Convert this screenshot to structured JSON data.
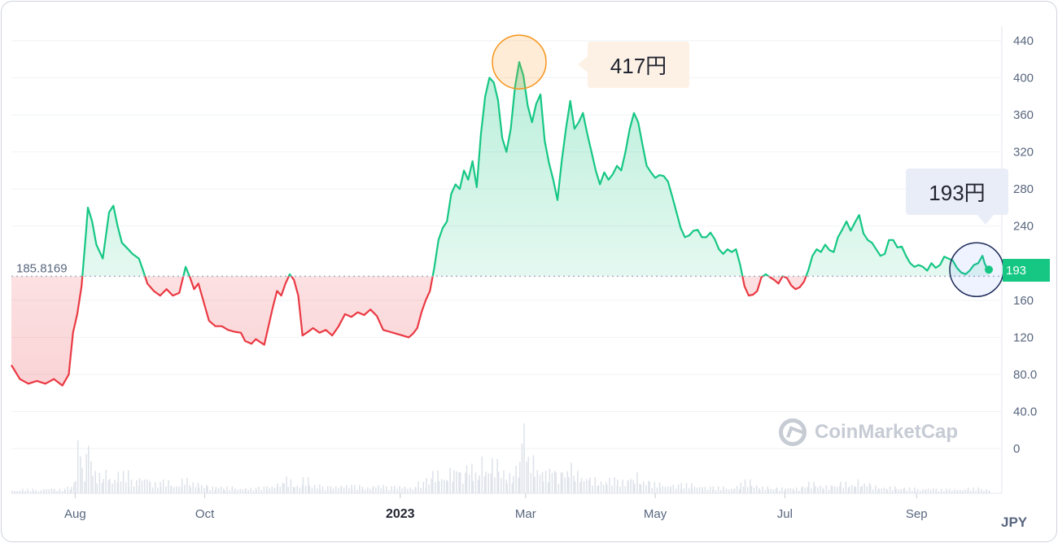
{
  "chart_data": {
    "type": "area",
    "currency": "JPY",
    "reference": {
      "label": "185.8169",
      "value": 185.8169
    },
    "y_ticks": [
      "440",
      "400",
      "360",
      "320",
      "280",
      "240",
      "160",
      "120",
      "80.0",
      "40.0",
      "0"
    ],
    "y_tick_values": [
      440,
      400,
      360,
      320,
      280,
      240,
      160,
      120,
      80,
      40,
      0
    ],
    "ylim": [
      0,
      440
    ],
    "x_ticks": [
      {
        "label": "Aug",
        "day": 30,
        "bold": false
      },
      {
        "label": "Oct",
        "day": 91,
        "bold": false
      },
      {
        "label": "2023",
        "day": 183,
        "bold": true
      },
      {
        "label": "Mar",
        "day": 242,
        "bold": false
      },
      {
        "label": "May",
        "day": 303,
        "bold": false
      },
      {
        "label": "Jul",
        "day": 364,
        "bold": false
      },
      {
        "label": "Sep",
        "day": 426,
        "bold": false
      }
    ],
    "high": {
      "label": "417円",
      "value": 417,
      "day": 239
    },
    "last": {
      "label": "193",
      "callout": "193円",
      "value": 193,
      "day": 460
    },
    "price_series": [
      [
        0,
        90
      ],
      [
        4,
        75
      ],
      [
        8,
        70
      ],
      [
        12,
        73
      ],
      [
        16,
        70
      ],
      [
        20,
        75
      ],
      [
        24,
        68
      ],
      [
        27,
        80
      ],
      [
        29,
        125
      ],
      [
        31,
        145
      ],
      [
        33,
        175
      ],
      [
        35,
        230
      ],
      [
        36,
        260
      ],
      [
        38,
        245
      ],
      [
        40,
        220
      ],
      [
        43,
        205
      ],
      [
        46,
        255
      ],
      [
        48,
        262
      ],
      [
        50,
        240
      ],
      [
        52,
        222
      ],
      [
        55,
        215
      ],
      [
        57,
        210
      ],
      [
        60,
        205
      ],
      [
        62,
        192
      ],
      [
        64,
        178
      ],
      [
        67,
        170
      ],
      [
        70,
        165
      ],
      [
        73,
        172
      ],
      [
        76,
        165
      ],
      [
        79,
        168
      ],
      [
        82,
        196
      ],
      [
        84,
        185
      ],
      [
        86,
        172
      ],
      [
        88,
        178
      ],
      [
        90,
        162
      ],
      [
        93,
        138
      ],
      [
        96,
        132
      ],
      [
        99,
        132
      ],
      [
        102,
        128
      ],
      [
        105,
        126
      ],
      [
        108,
        125
      ],
      [
        110,
        116
      ],
      [
        113,
        113
      ],
      [
        115,
        118
      ],
      [
        117,
        115
      ],
      [
        119,
        112
      ],
      [
        121,
        132
      ],
      [
        123,
        152
      ],
      [
        125,
        170
      ],
      [
        127,
        165
      ],
      [
        129,
        178
      ],
      [
        131,
        188
      ],
      [
        133,
        182
      ],
      [
        135,
        165
      ],
      [
        137,
        122
      ],
      [
        139,
        125
      ],
      [
        142,
        130
      ],
      [
        145,
        125
      ],
      [
        148,
        128
      ],
      [
        151,
        122
      ],
      [
        154,
        132
      ],
      [
        157,
        145
      ],
      [
        160,
        142
      ],
      [
        163,
        147
      ],
      [
        166,
        144
      ],
      [
        169,
        150
      ],
      [
        172,
        143
      ],
      [
        175,
        128
      ],
      [
        178,
        126
      ],
      [
        181,
        124
      ],
      [
        184,
        122
      ],
      [
        187,
        120
      ],
      [
        189,
        124
      ],
      [
        191,
        130
      ],
      [
        193,
        147
      ],
      [
        195,
        160
      ],
      [
        197,
        170
      ],
      [
        199,
        195
      ],
      [
        201,
        225
      ],
      [
        203,
        238
      ],
      [
        205,
        245
      ],
      [
        207,
        275
      ],
      [
        209,
        285
      ],
      [
        211,
        280
      ],
      [
        213,
        300
      ],
      [
        215,
        290
      ],
      [
        217,
        310
      ],
      [
        219,
        282
      ],
      [
        221,
        340
      ],
      [
        223,
        380
      ],
      [
        225,
        400
      ],
      [
        227,
        395
      ],
      [
        229,
        376
      ],
      [
        231,
        335
      ],
      [
        233,
        320
      ],
      [
        235,
        345
      ],
      [
        237,
        390
      ],
      [
        239,
        417
      ],
      [
        241,
        402
      ],
      [
        243,
        370
      ],
      [
        245,
        352
      ],
      [
        247,
        372
      ],
      [
        249,
        382
      ],
      [
        251,
        332
      ],
      [
        253,
        308
      ],
      [
        255,
        290
      ],
      [
        257,
        268
      ],
      [
        259,
        310
      ],
      [
        261,
        345
      ],
      [
        263,
        375
      ],
      [
        265,
        345
      ],
      [
        267,
        352
      ],
      [
        269,
        362
      ],
      [
        271,
        340
      ],
      [
        273,
        320
      ],
      [
        275,
        300
      ],
      [
        277,
        285
      ],
      [
        279,
        298
      ],
      [
        281,
        290
      ],
      [
        283,
        296
      ],
      [
        285,
        305
      ],
      [
        287,
        300
      ],
      [
        289,
        320
      ],
      [
        291,
        345
      ],
      [
        293,
        362
      ],
      [
        295,
        352
      ],
      [
        297,
        328
      ],
      [
        299,
        305
      ],
      [
        301,
        298
      ],
      [
        303,
        292
      ],
      [
        305,
        295
      ],
      [
        307,
        294
      ],
      [
        309,
        288
      ],
      [
        311,
        272
      ],
      [
        313,
        255
      ],
      [
        315,
        238
      ],
      [
        317,
        228
      ],
      [
        319,
        230
      ],
      [
        321,
        235
      ],
      [
        323,
        236
      ],
      [
        325,
        228
      ],
      [
        327,
        228
      ],
      [
        329,
        233
      ],
      [
        331,
        226
      ],
      [
        333,
        215
      ],
      [
        335,
        210
      ],
      [
        337,
        215
      ],
      [
        339,
        212
      ],
      [
        341,
        215
      ],
      [
        343,
        198
      ],
      [
        345,
        175
      ],
      [
        347,
        165
      ],
      [
        349,
        166
      ],
      [
        351,
        170
      ],
      [
        353,
        185
      ],
      [
        355,
        188
      ],
      [
        357,
        185
      ],
      [
        359,
        182
      ],
      [
        361,
        178
      ],
      [
        363,
        186
      ],
      [
        365,
        184
      ],
      [
        367,
        176
      ],
      [
        369,
        172
      ],
      [
        371,
        174
      ],
      [
        373,
        180
      ],
      [
        375,
        192
      ],
      [
        377,
        208
      ],
      [
        379,
        215
      ],
      [
        381,
        212
      ],
      [
        383,
        220
      ],
      [
        385,
        214
      ],
      [
        387,
        212
      ],
      [
        389,
        228
      ],
      [
        391,
        236
      ],
      [
        393,
        245
      ],
      [
        395,
        235
      ],
      [
        397,
        244
      ],
      [
        399,
        252
      ],
      [
        401,
        232
      ],
      [
        403,
        225
      ],
      [
        405,
        222
      ],
      [
        407,
        215
      ],
      [
        409,
        208
      ],
      [
        411,
        210
      ],
      [
        413,
        225
      ],
      [
        415,
        225
      ],
      [
        417,
        217
      ],
      [
        419,
        218
      ],
      [
        421,
        208
      ],
      [
        423,
        200
      ],
      [
        425,
        196
      ],
      [
        427,
        198
      ],
      [
        429,
        196
      ],
      [
        431,
        192
      ],
      [
        433,
        200
      ],
      [
        435,
        195
      ],
      [
        437,
        198
      ],
      [
        439,
        207
      ],
      [
        441,
        205
      ],
      [
        443,
        203
      ],
      [
        445,
        195
      ],
      [
        447,
        190
      ],
      [
        449,
        188
      ],
      [
        451,
        192
      ],
      [
        453,
        198
      ],
      [
        455,
        200
      ],
      [
        457,
        208
      ],
      [
        458,
        200
      ],
      [
        459,
        195
      ],
      [
        460,
        193
      ]
    ],
    "volume_series": [
      [
        0,
        3
      ],
      [
        5,
        4
      ],
      [
        10,
        3
      ],
      [
        15,
        5
      ],
      [
        20,
        4
      ],
      [
        25,
        6
      ],
      [
        28,
        10
      ],
      [
        30,
        14
      ],
      [
        31,
        52
      ],
      [
        33,
        22
      ],
      [
        35,
        36
      ],
      [
        36,
        48
      ],
      [
        38,
        24
      ],
      [
        40,
        18
      ],
      [
        43,
        22
      ],
      [
        46,
        14
      ],
      [
        50,
        20
      ],
      [
        55,
        12
      ],
      [
        60,
        16
      ],
      [
        65,
        10
      ],
      [
        70,
        12
      ],
      [
        75,
        8
      ],
      [
        80,
        14
      ],
      [
        84,
        10
      ],
      [
        88,
        8
      ],
      [
        92,
        6
      ],
      [
        96,
        7
      ],
      [
        100,
        6
      ],
      [
        105,
        5
      ],
      [
        110,
        5
      ],
      [
        115,
        6
      ],
      [
        120,
        7
      ],
      [
        125,
        10
      ],
      [
        128,
        16
      ],
      [
        130,
        12
      ],
      [
        133,
        8
      ],
      [
        137,
        14
      ],
      [
        140,
        8
      ],
      [
        145,
        6
      ],
      [
        150,
        7
      ],
      [
        155,
        8
      ],
      [
        160,
        7
      ],
      [
        165,
        6
      ],
      [
        170,
        8
      ],
      [
        175,
        6
      ],
      [
        180,
        7
      ],
      [
        185,
        6
      ],
      [
        190,
        10
      ],
      [
        195,
        14
      ],
      [
        198,
        20
      ],
      [
        201,
        16
      ],
      [
        205,
        22
      ],
      [
        208,
        26
      ],
      [
        211,
        18
      ],
      [
        214,
        28
      ],
      [
        217,
        20
      ],
      [
        220,
        32
      ],
      [
        223,
        24
      ],
      [
        226,
        30
      ],
      [
        229,
        22
      ],
      [
        233,
        18
      ],
      [
        236,
        26
      ],
      [
        239,
        30
      ],
      [
        240,
        44
      ],
      [
        241,
        60
      ],
      [
        243,
        34
      ],
      [
        246,
        24
      ],
      [
        250,
        20
      ],
      [
        253,
        26
      ],
      [
        256,
        18
      ],
      [
        259,
        22
      ],
      [
        262,
        28
      ],
      [
        265,
        20
      ],
      [
        268,
        16
      ],
      [
        272,
        14
      ],
      [
        276,
        12
      ],
      [
        280,
        14
      ],
      [
        285,
        12
      ],
      [
        290,
        16
      ],
      [
        293,
        18
      ],
      [
        296,
        12
      ],
      [
        300,
        10
      ],
      [
        305,
        8
      ],
      [
        310,
        8
      ],
      [
        315,
        9
      ],
      [
        320,
        7
      ],
      [
        325,
        6
      ],
      [
        330,
        6
      ],
      [
        335,
        5
      ],
      [
        340,
        7
      ],
      [
        343,
        10
      ],
      [
        345,
        12
      ],
      [
        348,
        8
      ],
      [
        352,
        6
      ],
      [
        356,
        5
      ],
      [
        360,
        5
      ],
      [
        364,
        6
      ],
      [
        368,
        5
      ],
      [
        372,
        7
      ],
      [
        375,
        10
      ],
      [
        378,
        8
      ],
      [
        382,
        7
      ],
      [
        386,
        8
      ],
      [
        390,
        10
      ],
      [
        394,
        9
      ],
      [
        397,
        12
      ],
      [
        400,
        10
      ],
      [
        404,
        7
      ],
      [
        408,
        6
      ],
      [
        412,
        6
      ],
      [
        416,
        5
      ],
      [
        420,
        5
      ],
      [
        425,
        4
      ],
      [
        430,
        5
      ],
      [
        435,
        4
      ],
      [
        440,
        4
      ],
      [
        445,
        4
      ],
      [
        450,
        5
      ],
      [
        455,
        4
      ],
      [
        460,
        3
      ]
    ],
    "volume_max": 62,
    "watermark": "CoinMarketCap"
  }
}
